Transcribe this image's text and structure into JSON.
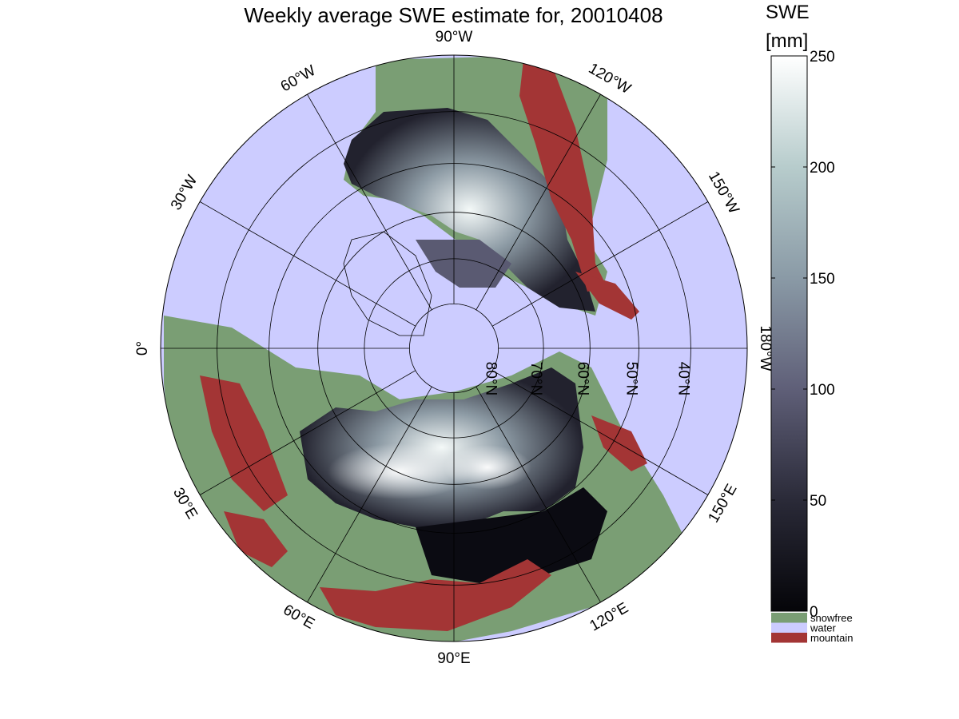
{
  "title": "Weekly average SWE estimate for, 20010408",
  "colorbar": {
    "title_line1": "SWE",
    "title_line2": "[mm]",
    "ticks": [
      0,
      50,
      100,
      150,
      200,
      250
    ],
    "range": [
      0,
      250
    ],
    "categories": [
      {
        "label": "snowfree",
        "color": "#7a9e74"
      },
      {
        "label": "water",
        "color": "#ccccff"
      },
      {
        "label": "mountain",
        "color": "#a33535"
      }
    ]
  },
  "map": {
    "projection": "north polar stereographic",
    "colors": {
      "water": "#ccccff",
      "snowfree": "#7a9e74",
      "mountain": "#a33535",
      "swe_low": "#0b0b12",
      "swe_mid": "#5a5a72",
      "swe_high": "#f4f9f8"
    },
    "longitude_labels": [
      "90°W",
      "120°W",
      "150°W",
      "180°W",
      "150°E",
      "120°E",
      "90°E",
      "60°E",
      "30°E",
      "0°",
      "30°W",
      "60°W"
    ],
    "latitude_labels": [
      "80°N",
      "70°N",
      "60°N",
      "50°N",
      "40°N"
    ],
    "latitude_values": [
      80,
      70,
      60,
      50,
      40
    ]
  }
}
